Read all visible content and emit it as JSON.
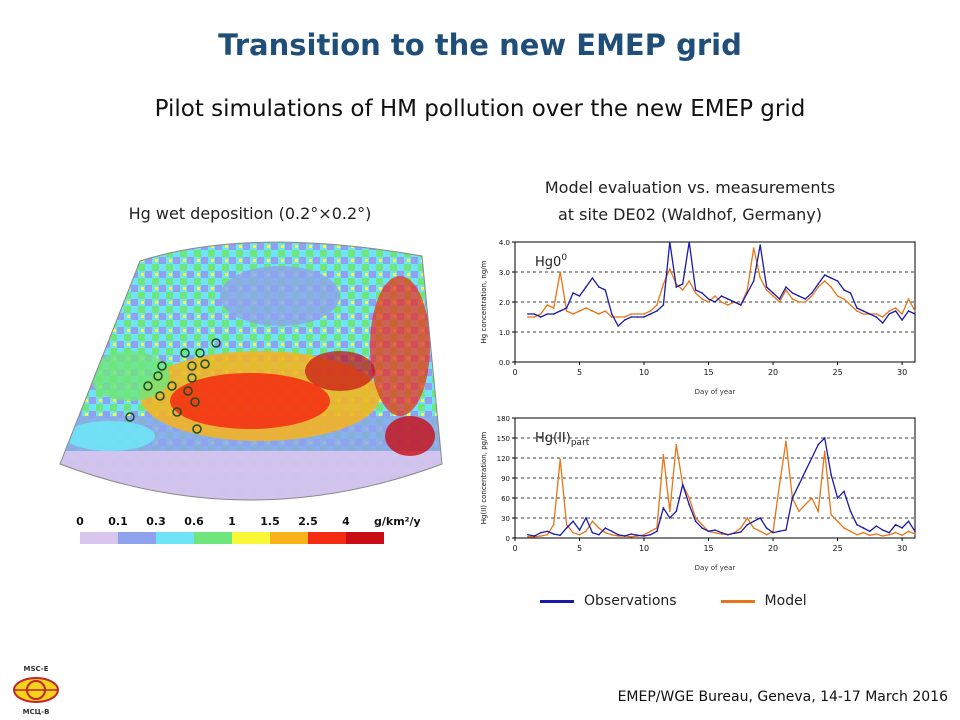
{
  "slide": {
    "title": "Transition to the new EMEP grid",
    "subtitle": "Pilot simulations of HM pollution over the new EMEP grid",
    "footer": "EMEP/WGE Bureau, Geneva, 14-17 March 2016",
    "logo_text_top": "MSC-E",
    "logo_text_bottom": "МСЦ-В"
  },
  "map": {
    "title": "Hg wet deposition (0.2°×0.2°)",
    "scale_labels": [
      "0",
      "0.1",
      "0.3",
      "0.6",
      "1",
      "1.5",
      "2.5",
      "4"
    ],
    "scale_unit": "g/km²/y",
    "scale_colors": [
      "#d9c6ee",
      "#8ea2ee",
      "#6fe4f6",
      "#6fe67c",
      "#f8f838",
      "#f9b31a",
      "#f42a12",
      "#c80e14"
    ]
  },
  "evaluation": {
    "title_line1": "Model evaluation vs. measurements",
    "title_line2": "at site DE02 (Waldhof, Germany)"
  },
  "legend": {
    "observations": "Observations",
    "model": "Model",
    "obs_color": "#1a1aa8",
    "model_color": "#e87417"
  },
  "chart_data": [
    {
      "type": "line",
      "label": "Hg0",
      "ylabel": "Hg concentration, ng/m",
      "xlabel": "Day of year",
      "xlim": [
        0,
        31
      ],
      "ylim": [
        0,
        4.0
      ],
      "xticks": [
        0,
        5,
        10,
        15,
        20,
        25,
        30
      ],
      "yticks": [
        0.0,
        1.0,
        2.0,
        3.0,
        4.0
      ],
      "ytick_labels": [
        "0.0",
        "1.0",
        "2.0",
        "3.0",
        "4.0"
      ],
      "series": [
        {
          "name": "Observations",
          "color": "#1a1aa8",
          "x": [
            1,
            1.5,
            2,
            2.5,
            3,
            3.5,
            4,
            4.5,
            5,
            5.5,
            6,
            6.5,
            7,
            7.5,
            8,
            8.5,
            9,
            9.5,
            10,
            10.5,
            11,
            11.5,
            12,
            12.5,
            13,
            13.5,
            14,
            14.5,
            15,
            15.5,
            16,
            16.5,
            17,
            17.5,
            18,
            18.5,
            19,
            19.5,
            20,
            20.5,
            21,
            21.5,
            22,
            22.5,
            23,
            23.5,
            24,
            24.5,
            25,
            25.5,
            26,
            26.5,
            27,
            27.5,
            28,
            28.5,
            29,
            29.5,
            30,
            30.5,
            31
          ],
          "y": [
            1.6,
            1.6,
            1.5,
            1.6,
            1.6,
            1.7,
            1.8,
            2.3,
            2.2,
            2.5,
            2.8,
            2.5,
            2.4,
            1.6,
            1.2,
            1.4,
            1.5,
            1.5,
            1.5,
            1.6,
            1.7,
            1.9,
            4.0,
            2.5,
            2.6,
            4.0,
            2.4,
            2.3,
            2.1,
            2.0,
            2.2,
            2.1,
            2.0,
            1.9,
            2.3,
            2.7,
            3.9,
            2.5,
            2.3,
            2.1,
            2.5,
            2.3,
            2.2,
            2.1,
            2.3,
            2.6,
            2.9,
            2.8,
            2.7,
            2.4,
            2.3,
            1.8,
            1.7,
            1.6,
            1.5,
            1.3,
            1.6,
            1.7,
            1.4,
            1.7,
            1.6
          ]
        },
        {
          "name": "Model",
          "color": "#e87417",
          "x": [
            1,
            1.5,
            2,
            2.5,
            3,
            3.5,
            4,
            4.5,
            5,
            5.5,
            6,
            6.5,
            7,
            7.5,
            8,
            8.5,
            9,
            9.5,
            10,
            10.5,
            11,
            11.5,
            12,
            12.5,
            13,
            13.5,
            14,
            14.5,
            15,
            15.5,
            16,
            16.5,
            17,
            17.5,
            18,
            18.5,
            19,
            19.5,
            20,
            20.5,
            21,
            21.5,
            22,
            22.5,
            23,
            23.5,
            24,
            24.5,
            25,
            25.5,
            26,
            26.5,
            27,
            27.5,
            28,
            28.5,
            29,
            29.5,
            30,
            30.5,
            31
          ],
          "y": [
            1.5,
            1.5,
            1.6,
            1.9,
            1.8,
            3.0,
            1.7,
            1.6,
            1.7,
            1.8,
            1.7,
            1.6,
            1.7,
            1.5,
            1.5,
            1.5,
            1.6,
            1.6,
            1.6,
            1.7,
            1.9,
            2.6,
            3.1,
            2.6,
            2.4,
            2.7,
            2.3,
            2.1,
            2.0,
            2.2,
            2.0,
            1.9,
            2.0,
            1.9,
            2.4,
            3.8,
            2.8,
            2.4,
            2.2,
            2.0,
            2.4,
            2.1,
            2.0,
            2.0,
            2.2,
            2.5,
            2.7,
            2.5,
            2.2,
            2.1,
            1.9,
            1.7,
            1.6,
            1.6,
            1.6,
            1.5,
            1.7,
            1.8,
            1.6,
            2.1,
            1.7
          ]
        }
      ]
    },
    {
      "type": "line",
      "label": "Hg(II)",
      "label_sub": "part",
      "ylabel": "Hg(II) concentration, pg/m",
      "xlabel": "Day of year",
      "xlim": [
        0,
        31
      ],
      "ylim": [
        0,
        180
      ],
      "xticks": [
        0,
        5,
        10,
        15,
        20,
        25,
        30
      ],
      "yticks": [
        0,
        30,
        60,
        90,
        120,
        150,
        180
      ],
      "ytick_labels": [
        "0",
        "30",
        "60",
        "90",
        "120",
        "150",
        "180"
      ],
      "series": [
        {
          "name": "Observations",
          "color": "#1a1aa8",
          "x": [
            1,
            1.5,
            2,
            2.5,
            3,
            3.5,
            4,
            4.5,
            5,
            5.5,
            6,
            6.5,
            7,
            7.5,
            8,
            8.5,
            9,
            9.5,
            10,
            10.5,
            11,
            11.5,
            12,
            12.5,
            13,
            13.5,
            14,
            14.5,
            15,
            15.5,
            16,
            16.5,
            17,
            17.5,
            18,
            18.5,
            19,
            19.5,
            20,
            20.5,
            21,
            21.5,
            22,
            22.5,
            23,
            23.5,
            24,
            24.5,
            25,
            25.5,
            26,
            26.5,
            27,
            27.5,
            28,
            28.5,
            29,
            29.5,
            30,
            30.5,
            31
          ],
          "y": [
            5,
            3,
            8,
            10,
            6,
            4,
            15,
            25,
            12,
            30,
            8,
            5,
            15,
            10,
            5,
            3,
            6,
            4,
            3,
            5,
            10,
            45,
            30,
            40,
            80,
            50,
            25,
            15,
            10,
            12,
            8,
            5,
            7,
            9,
            20,
            25,
            30,
            15,
            8,
            10,
            12,
            60,
            80,
            100,
            120,
            140,
            150,
            95,
            60,
            70,
            40,
            20,
            15,
            10,
            18,
            12,
            8,
            20,
            15,
            25,
            10
          ]
        },
        {
          "name": "Model",
          "color": "#e87417",
          "x": [
            1,
            1.5,
            2,
            2.5,
            3,
            3.5,
            4,
            4.5,
            5,
            5.5,
            6,
            6.5,
            7,
            7.5,
            8,
            8.5,
            9,
            9.5,
            10,
            10.5,
            11,
            11.5,
            12,
            12.5,
            13,
            13.5,
            14,
            14.5,
            15,
            15.5,
            16,
            16.5,
            17,
            17.5,
            18,
            18.5,
            19,
            19.5,
            20,
            20.5,
            21,
            21.5,
            22,
            22.5,
            23,
            23.5,
            24,
            24.5,
            25,
            25.5,
            26,
            26.5,
            27,
            27.5,
            28,
            28.5,
            29,
            29.5,
            30,
            30.5,
            31
          ],
          "y": [
            2,
            2,
            3,
            5,
            20,
            118,
            20,
            8,
            5,
            10,
            25,
            15,
            8,
            5,
            3,
            3,
            2,
            3,
            5,
            10,
            15,
            125,
            40,
            140,
            80,
            60,
            30,
            20,
            10,
            8,
            6,
            5,
            8,
            15,
            30,
            15,
            10,
            5,
            10,
            80,
            145,
            60,
            40,
            50,
            60,
            40,
            130,
            35,
            25,
            15,
            10,
            5,
            8,
            4,
            6,
            3,
            5,
            8,
            4,
            10,
            6
          ]
        }
      ]
    }
  ]
}
